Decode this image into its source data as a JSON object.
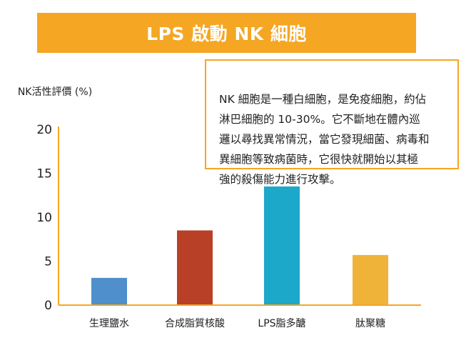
{
  "banner": {
    "title": "LPS 啟動 NK 細胞",
    "color": "#f5a623"
  },
  "callout": {
    "text": "NK 細胞是一種白細胞，是免疫細胞，約佔\n淋巴細胞的 10-30%。它不斷地在體內巡\n邏以尋找異常情況，當它發現細菌、病毒和\n異細胞等致病菌時，它很快就開始以其極\n強的殺傷能力進行攻擊。",
    "border_color": "#f5a623"
  },
  "chart_data": {
    "type": "bar",
    "ylabel": "NK活性評價\n(%)",
    "ylim": [
      0,
      20
    ],
    "yticks": [
      0,
      5,
      10,
      15,
      20
    ],
    "categories": [
      "生理鹽水",
      "合成脂質核酸",
      "LPS脂多醣",
      "肽聚糖"
    ],
    "values": [
      3.1,
      8.5,
      13.5,
      5.7
    ],
    "colors": [
      "#4f8fcb",
      "#b84026",
      "#1ba8c9",
      "#f0b33a"
    ],
    "grid": false
  }
}
